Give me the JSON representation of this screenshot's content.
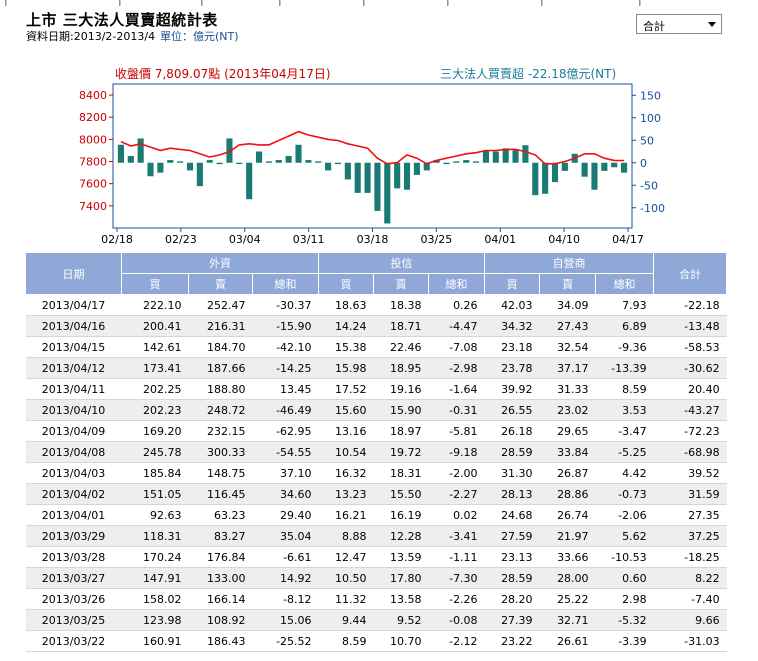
{
  "page": {
    "title": "上市 三大法人買賣超統計表",
    "date_range": "資料日期:2013/2-2013/4",
    "unit": "單位：億元(NT)",
    "selector_value": "合計"
  },
  "chart": {
    "close_label": "收盤價 7,809.07點 (2013年04月17日)",
    "net_label": "三大法人買賣超 -22.18億元(NT)",
    "colors": {
      "price_line": "#ee1111",
      "bars": "#1a7b74",
      "axis_left": "#cc0000",
      "axis_right": "#1a4fa0",
      "frame": "#1a4fa0"
    }
  },
  "chart_data": {
    "type": "bar",
    "x_tick_labels": [
      "02/18",
      "02/23",
      "03/04",
      "03/11",
      "03/18",
      "03/25",
      "04/01",
      "04/10",
      "04/17"
    ],
    "left_axis": {
      "ticks": [
        7400,
        7600,
        7800,
        8000,
        8200,
        8400
      ],
      "range": [
        7200,
        8500
      ]
    },
    "right_axis": {
      "ticks": [
        -100,
        -50,
        0,
        50,
        100,
        150
      ],
      "range": [
        -145,
        175
      ]
    },
    "series": [
      {
        "type": "bar",
        "values": [
          40,
          15,
          54,
          -30,
          -22,
          6,
          3,
          -17,
          -52,
          6,
          -3,
          54,
          -3,
          -81,
          25,
          3,
          6,
          15,
          40,
          6,
          3,
          -17,
          -3,
          -37,
          -67,
          -67,
          -107,
          -135,
          -57,
          -60,
          -27,
          -17,
          6,
          -3,
          3,
          6,
          3,
          28,
          25,
          32,
          28,
          39,
          -72,
          -69,
          -43,
          -18,
          20,
          -31,
          -60,
          -18,
          -10,
          -22
        ]
      },
      {
        "type": "line",
        "values": [
          7980,
          7940,
          7960,
          7930,
          7900,
          7920,
          7910,
          7900,
          7870,
          7840,
          7860,
          7890,
          7950,
          7960,
          7950,
          7950,
          7990,
          8030,
          8070,
          8040,
          8020,
          8000,
          7990,
          7960,
          7940,
          7920,
          7830,
          7780,
          7790,
          7860,
          7830,
          7780,
          7810,
          7830,
          7850,
          7870,
          7880,
          7900,
          7900,
          7910,
          7910,
          7890,
          7860,
          7780,
          7780,
          7800,
          7830,
          7870,
          7870,
          7830,
          7810,
          7809
        ]
      }
    ]
  },
  "table": {
    "group_headers": [
      "日期",
      "外資",
      "投信",
      "自營商",
      "合計"
    ],
    "sub_headers": [
      "買",
      "賣",
      "總和",
      "買",
      "賣",
      "總和",
      "買",
      "賣",
      "總和"
    ],
    "rows": [
      [
        "2013/04/17",
        "222.10",
        "252.47",
        "-30.37",
        "18.63",
        "18.38",
        "0.26",
        "42.03",
        "34.09",
        "7.93",
        "-22.18"
      ],
      [
        "2013/04/16",
        "200.41",
        "216.31",
        "-15.90",
        "14.24",
        "18.71",
        "-4.47",
        "34.32",
        "27.43",
        "6.89",
        "-13.48"
      ],
      [
        "2013/04/15",
        "142.61",
        "184.70",
        "-42.10",
        "15.38",
        "22.46",
        "-7.08",
        "23.18",
        "32.54",
        "-9.36",
        "-58.53"
      ],
      [
        "2013/04/12",
        "173.41",
        "187.66",
        "-14.25",
        "15.98",
        "18.95",
        "-2.98",
        "23.78",
        "37.17",
        "-13.39",
        "-30.62"
      ],
      [
        "2013/04/11",
        "202.25",
        "188.80",
        "13.45",
        "17.52",
        "19.16",
        "-1.64",
        "39.92",
        "31.33",
        "8.59",
        "20.40"
      ],
      [
        "2013/04/10",
        "202.23",
        "248.72",
        "-46.49",
        "15.60",
        "15.90",
        "-0.31",
        "26.55",
        "23.02",
        "3.53",
        "-43.27"
      ],
      [
        "2013/04/09",
        "169.20",
        "232.15",
        "-62.95",
        "13.16",
        "18.97",
        "-5.81",
        "26.18",
        "29.65",
        "-3.47",
        "-72.23"
      ],
      [
        "2013/04/08",
        "245.78",
        "300.33",
        "-54.55",
        "10.54",
        "19.72",
        "-9.18",
        "28.59",
        "33.84",
        "-5.25",
        "-68.98"
      ],
      [
        "2013/04/03",
        "185.84",
        "148.75",
        "37.10",
        "16.32",
        "18.31",
        "-2.00",
        "31.30",
        "26.87",
        "4.42",
        "39.52"
      ],
      [
        "2013/04/02",
        "151.05",
        "116.45",
        "34.60",
        "13.23",
        "15.50",
        "-2.27",
        "28.13",
        "28.86",
        "-0.73",
        "31.59"
      ],
      [
        "2013/04/01",
        "92.63",
        "63.23",
        "29.40",
        "16.21",
        "16.19",
        "0.02",
        "24.68",
        "26.74",
        "-2.06",
        "27.35"
      ],
      [
        "2013/03/29",
        "118.31",
        "83.27",
        "35.04",
        "8.88",
        "12.28",
        "-3.41",
        "27.59",
        "21.97",
        "5.62",
        "37.25"
      ],
      [
        "2013/03/28",
        "170.24",
        "176.84",
        "-6.61",
        "12.47",
        "13.59",
        "-1.11",
        "23.13",
        "33.66",
        "-10.53",
        "-18.25"
      ],
      [
        "2013/03/27",
        "147.91",
        "133.00",
        "14.92",
        "10.50",
        "17.80",
        "-7.30",
        "28.59",
        "28.00",
        "0.60",
        "8.22"
      ],
      [
        "2013/03/26",
        "158.02",
        "166.14",
        "-8.12",
        "11.32",
        "13.58",
        "-2.26",
        "28.20",
        "25.22",
        "2.98",
        "-7.40"
      ],
      [
        "2013/03/25",
        "123.98",
        "108.92",
        "15.06",
        "9.44",
        "9.52",
        "-0.08",
        "27.39",
        "32.71",
        "-5.32",
        "9.66"
      ],
      [
        "2013/03/22",
        "160.91",
        "186.43",
        "-25.52",
        "8.59",
        "10.70",
        "-2.12",
        "23.22",
        "26.61",
        "-3.39",
        "-31.03"
      ]
    ]
  }
}
